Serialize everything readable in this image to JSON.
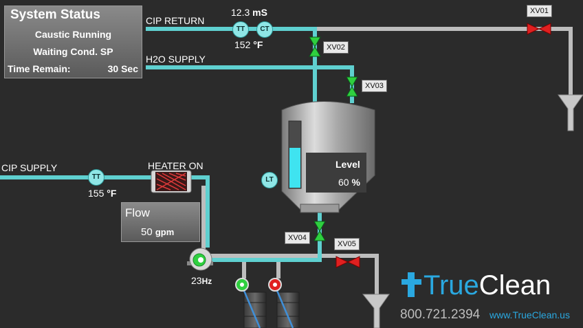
{
  "status": {
    "title": "System Status",
    "line1": "Caustic Running",
    "line2": "Waiting Cond. SP",
    "time_label": "Time Remain:",
    "time_value": "30",
    "time_unit": "Sec"
  },
  "pipes": {
    "cip_return": "CIP RETURN",
    "h2o_supply": "H2O SUPPLY",
    "cip_supply": "CIP SUPPLY"
  },
  "instruments": {
    "tt": "TT",
    "ct": "CT",
    "lt": "LT",
    "conductivity_value": "12.3",
    "conductivity_unit": "mS",
    "return_temp_value": "152",
    "supply_temp_value": "155",
    "temp_unit": "°F"
  },
  "heater": {
    "label": "HEATER ON"
  },
  "flow": {
    "title": "Flow",
    "value": "50",
    "unit": "gpm"
  },
  "tank": {
    "level_title": "Level",
    "level_value": "60",
    "level_unit": "%",
    "level_fraction": 0.6
  },
  "pump": {
    "speed_value": "23",
    "speed_unit": "Hz"
  },
  "valves": {
    "xv01": "XV01",
    "xv02": "XV02",
    "xv03": "XV03",
    "xv04": "XV04",
    "xv05": "XV05"
  },
  "brand": {
    "name_prefix": "True",
    "name_suffix": "Clean",
    "phone": "800.721.2394",
    "website": "www.TrueClean.us"
  },
  "colors": {
    "background": "#2b2b2b",
    "pipe_cyan": "#5fd0d0",
    "pipe_gray": "#bdbdbd",
    "valve_open": "#2fcf3f",
    "valve_closed": "#e02020",
    "brand_blue": "#2aa8e0"
  }
}
